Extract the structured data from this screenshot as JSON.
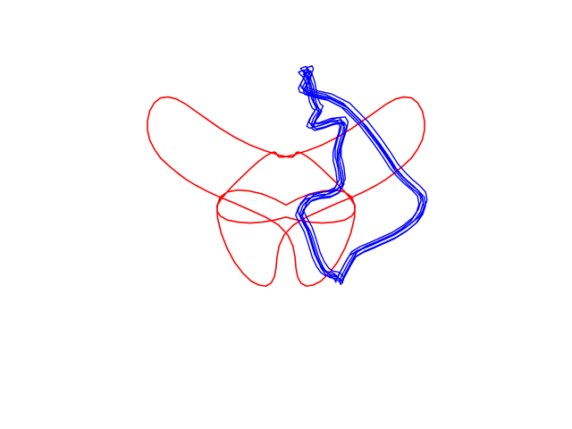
{
  "chart_data": {
    "type": "line",
    "axes_visible": false,
    "grid": false,
    "legend": "none",
    "xlim": [
      -1.7,
      1.7
    ],
    "ylim": [
      -1.3,
      1.3
    ],
    "series": [
      {
        "color": "#ff0000",
        "kind": "parametric-butterfly",
        "x": [
          1.0,
          1.0,
          0.984,
          0.951,
          0.906,
          0.852,
          0.792,
          0.726,
          0.655,
          0.573,
          0.48,
          0.374,
          0.26,
          0.148,
          0.053,
          -0.014,
          -0.05,
          -0.065,
          -0.072,
          -0.084,
          -0.108,
          -0.146,
          -0.195,
          -0.252,
          -0.312,
          -0.372,
          -0.426,
          -0.468,
          -0.494,
          -0.498,
          -0.474,
          -0.424,
          -0.35,
          -0.262,
          -0.17,
          -0.081,
          0.0,
          0.081,
          0.17,
          0.262,
          0.35,
          0.424,
          0.474,
          0.498,
          0.494,
          0.468,
          0.426,
          0.372,
          0.312,
          0.252,
          0.195,
          0.146,
          0.108,
          0.084,
          0.072,
          0.065,
          0.05,
          0.014,
          -0.053,
          -0.148,
          -0.26,
          -0.374,
          -0.48,
          -0.573,
          -0.655,
          -0.726,
          -0.792,
          -0.852,
          -0.906,
          -0.951,
          -0.984,
          -1.0,
          -1.0,
          -0.984,
          -0.951,
          -0.906,
          -0.852,
          -0.792,
          -0.726,
          -0.655,
          -0.573,
          -0.48,
          -0.374,
          -0.26,
          -0.148,
          -0.053,
          0.014,
          0.05,
          0.065,
          0.072,
          0.084,
          0.108,
          0.146,
          0.195,
          0.252,
          0.312,
          0.372,
          0.426,
          0.468,
          0.494,
          0.498,
          0.474,
          0.424,
          0.35,
          0.262,
          0.17,
          0.081,
          0.0,
          -0.081,
          -0.17,
          -0.262,
          -0.35,
          -0.424,
          -0.474,
          -0.498,
          -0.494,
          -0.468,
          -0.426,
          -0.372,
          -0.312,
          -0.252,
          -0.195,
          -0.146,
          -0.108,
          -0.084,
          -0.072,
          -0.065,
          -0.05,
          -0.014,
          0.053,
          0.148,
          0.26,
          0.374,
          0.48,
          0.573,
          0.655,
          0.726,
          0.792,
          0.852,
          0.906,
          0.951,
          0.984,
          1.0
        ],
        "y": [
          0.55,
          0.64,
          0.74,
          0.82,
          0.87,
          0.88,
          0.86,
          0.81,
          0.74,
          0.66,
          0.57,
          0.48,
          0.4,
          0.34,
          0.3,
          0.28,
          0.28,
          0.3,
          0.32,
          0.33,
          0.32,
          0.29,
          0.24,
          0.17,
          0.09,
          0.01,
          -0.07,
          -0.14,
          -0.2,
          -0.26,
          -0.31,
          -0.35,
          -0.37,
          -0.38,
          -0.37,
          -0.35,
          -0.32,
          -0.35,
          -0.37,
          -0.38,
          -0.37,
          -0.35,
          -0.31,
          -0.26,
          -0.2,
          -0.14,
          -0.07,
          0.01,
          0.09,
          0.17,
          0.24,
          0.29,
          0.32,
          0.33,
          0.32,
          0.3,
          0.28,
          0.28,
          0.3,
          0.34,
          0.4,
          0.48,
          0.57,
          0.66,
          0.74,
          0.81,
          0.86,
          0.88,
          0.87,
          0.82,
          0.74,
          0.64,
          0.55,
          0.45,
          0.36,
          0.27,
          0.2,
          0.13,
          0.06,
          0.0,
          -0.06,
          -0.12,
          -0.18,
          -0.25,
          -0.32,
          -0.4,
          -0.5,
          -0.61,
          -0.72,
          -0.83,
          -0.92,
          -0.98,
          -1.01,
          -1.0,
          -0.96,
          -0.88,
          -0.77,
          -0.63,
          -0.48,
          -0.33,
          -0.21,
          -0.12,
          -0.07,
          -0.05,
          -0.06,
          -0.09,
          -0.14,
          -0.2,
          -0.14,
          -0.09,
          -0.06,
          -0.05,
          -0.07,
          -0.12,
          -0.21,
          -0.33,
          -0.48,
          -0.63,
          -0.77,
          -0.88,
          -0.96,
          -1.0,
          -1.01,
          -0.98,
          -0.92,
          -0.83,
          -0.72,
          -0.61,
          -0.5,
          -0.4,
          -0.32,
          -0.25,
          -0.18,
          -0.12,
          -0.06,
          0.0,
          0.06,
          0.13,
          0.2,
          0.27,
          0.36,
          0.45,
          0.55
        ]
      },
      {
        "color": "#0000ff",
        "kind": "tangled-loop",
        "x": [
          0.12,
          0.16,
          0.17,
          0.15,
          0.12,
          0.13,
          0.2,
          0.3,
          0.43,
          0.56,
          0.66,
          0.73,
          0.78,
          0.83,
          0.88,
          0.94,
          0.98,
          0.99,
          0.97,
          0.93,
          0.86,
          0.78,
          0.7,
          0.62,
          0.55,
          0.49,
          0.45,
          0.42,
          0.4,
          0.39,
          0.39,
          0.38,
          0.35,
          0.31,
          0.28,
          0.25,
          0.22,
          0.2,
          0.18,
          0.16,
          0.14,
          0.12,
          0.1,
          0.12,
          0.17,
          0.24,
          0.31,
          0.37,
          0.4,
          0.39,
          0.37,
          0.37,
          0.39,
          0.41,
          0.42,
          0.4,
          0.34,
          0.26,
          0.2,
          0.18,
          0.2,
          0.23,
          0.24,
          0.22,
          0.2,
          0.19,
          0.18,
          0.16,
          0.13,
          0.12
        ],
        "y": [
          1.14,
          1.16,
          1.13,
          1.06,
          0.98,
          0.94,
          0.91,
          0.88,
          0.79,
          0.61,
          0.43,
          0.29,
          0.18,
          0.1,
          0.03,
          -0.04,
          -0.1,
          -0.18,
          -0.27,
          -0.35,
          -0.43,
          -0.5,
          -0.55,
          -0.6,
          -0.64,
          -0.69,
          -0.78,
          -0.86,
          -0.91,
          -0.95,
          -0.96,
          -0.93,
          -0.9,
          -0.89,
          -0.86,
          -0.8,
          -0.71,
          -0.62,
          -0.53,
          -0.45,
          -0.4,
          -0.35,
          -0.29,
          -0.21,
          -0.13,
          -0.1,
          -0.09,
          -0.05,
          0.03,
          0.15,
          0.26,
          0.34,
          0.45,
          0.53,
          0.6,
          0.65,
          0.64,
          0.6,
          0.58,
          0.6,
          0.67,
          0.73,
          0.76,
          0.78,
          0.84,
          0.92,
          1.0,
          1.08,
          1.12,
          1.14
        ],
        "repeat_offsets": [
          [
            0,
            0
          ],
          [
            -0.015,
            0.025
          ],
          [
            0.018,
            -0.02
          ],
          [
            -0.03,
            -0.012
          ],
          [
            0.028,
            0.03
          ],
          [
            0.006,
            -0.035
          ]
        ]
      }
    ]
  }
}
